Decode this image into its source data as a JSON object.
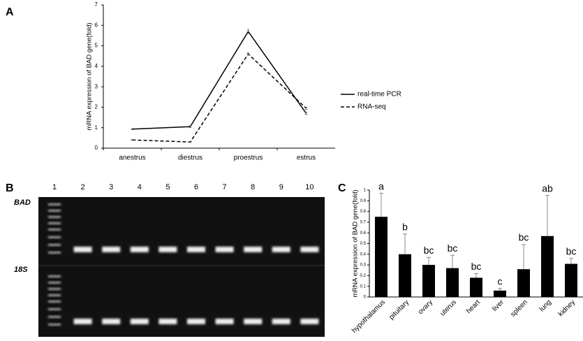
{
  "panel_labels": [
    "A",
    "B",
    "C"
  ],
  "chart_data": [
    {
      "type": "line",
      "ylabel": "mRNA expression of BAD gene(fold)",
      "categories": [
        "anestrus",
        "diestrus",
        "proestrus",
        "estrus"
      ],
      "series": [
        {
          "name": "real-time PCR",
          "color": "#000000",
          "style": "solid",
          "values": [
            0.93,
            1.05,
            5.7,
            1.7
          ],
          "errors": [
            0.03,
            0.05,
            0.1,
            0.05
          ]
        },
        {
          "name": "RNA-seq",
          "color": "#000000",
          "style": "dashed",
          "values": [
            0.4,
            0.3,
            4.6,
            1.95
          ],
          "errors": [
            0.02,
            0.02,
            0.05,
            0.05
          ]
        }
      ],
      "ylim": [
        0,
        7
      ],
      "yticks": [
        0,
        1,
        2,
        3,
        4,
        5,
        6,
        7
      ],
      "legend": "right"
    },
    {
      "type": "bar",
      "ylabel": "mRNA expression of BAD gene(fold)",
      "categories": [
        "hypothalamus",
        "pituitary",
        "ovary",
        "uterus",
        "heart",
        "liver",
        "spleen",
        "lung",
        "kidney"
      ],
      "values": [
        0.75,
        0.4,
        0.3,
        0.27,
        0.18,
        0.06,
        0.26,
        0.57,
        0.31
      ],
      "errors": [
        0.22,
        0.19,
        0.07,
        0.12,
        0.04,
        0.02,
        0.23,
        0.38,
        0.05
      ],
      "annotations": [
        "a",
        "b",
        "bc",
        "bc",
        "bc",
        "c",
        "bc",
        "ab",
        "bc"
      ],
      "color": "#000000",
      "ylim": [
        0,
        1
      ],
      "yticks": [
        0,
        0.1,
        0.2,
        0.3,
        0.4,
        0.5,
        0.6,
        0.7,
        0.8,
        0.9,
        1
      ]
    }
  ],
  "gel": {
    "lanes": [
      "1",
      "2",
      "3",
      "4",
      "5",
      "6",
      "7",
      "8",
      "9",
      "10"
    ],
    "rows": [
      "BAD",
      "18S"
    ]
  }
}
